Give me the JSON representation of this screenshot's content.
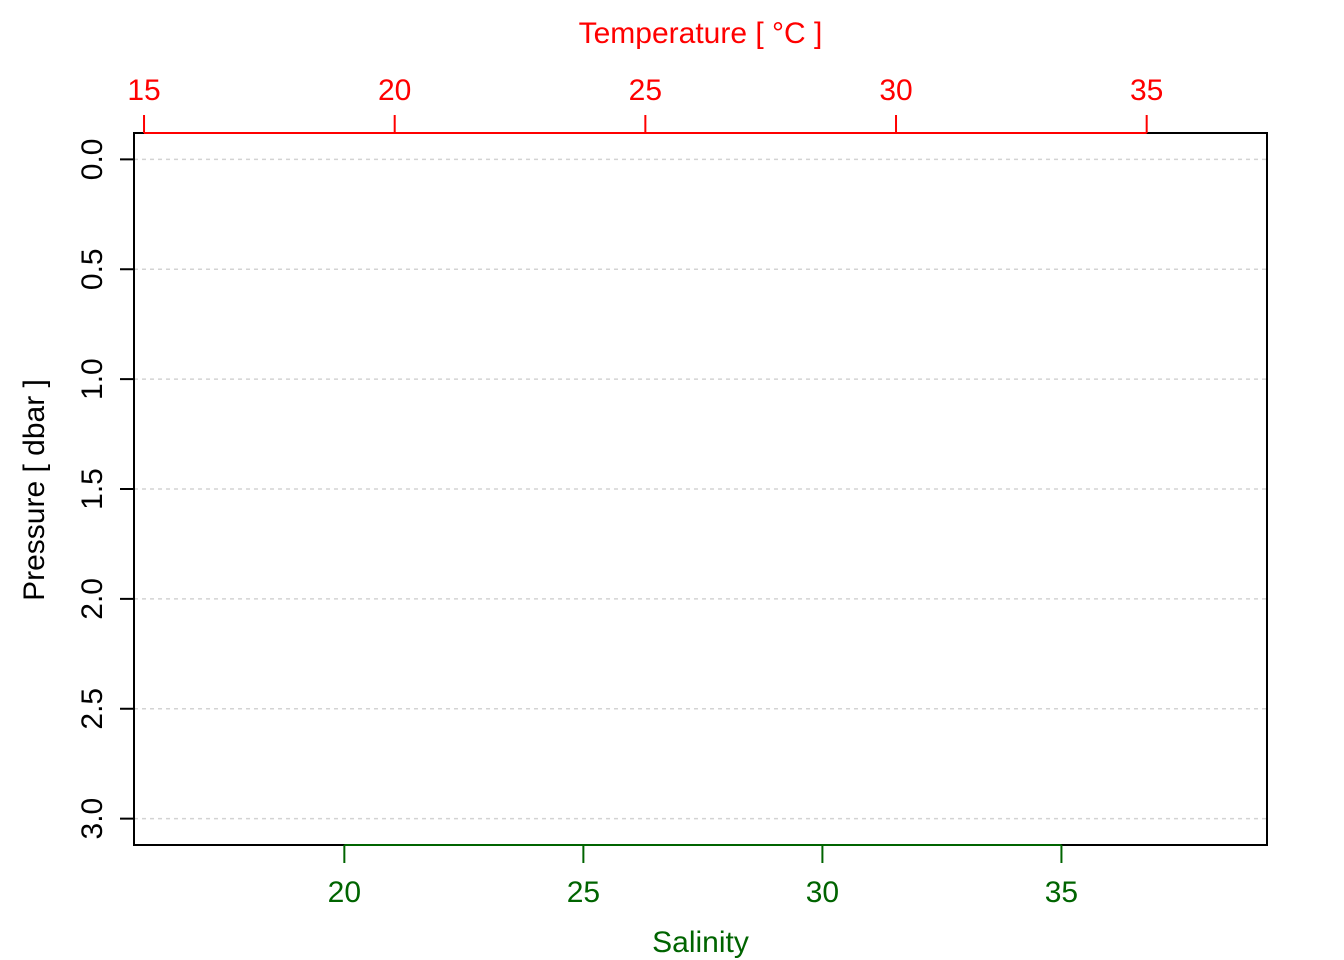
{
  "chart_data": {
    "type": "line",
    "title": "",
    "series": [],
    "y_axis": {
      "label": "Pressure [ dbar ]",
      "ylim": [
        3.12,
        -0.12
      ],
      "reversed": true,
      "ticks": [
        0.0,
        0.5,
        1.0,
        1.5,
        2.0,
        2.5,
        3.0
      ],
      "tick_labels": [
        "0.0",
        "0.5",
        "1.0",
        "1.5",
        "2.0",
        "2.5",
        "3.0"
      ],
      "grid": true,
      "color": "#000000"
    },
    "x_axis_top": {
      "label": "Temperature [ °C ]",
      "xlim": [
        14.8,
        37.4
      ],
      "ticks": [
        15,
        20,
        25,
        30,
        35
      ],
      "tick_labels": [
        "15",
        "20",
        "25",
        "30",
        "35"
      ],
      "color": "#ff0000"
    },
    "x_axis_bottom": {
      "label": "Salinity",
      "xlim": [
        15.6,
        39.3
      ],
      "ticks": [
        20,
        25,
        30,
        35
      ],
      "tick_labels": [
        "20",
        "25",
        "30",
        "35"
      ],
      "color": "#006400"
    },
    "grid_color": "#d3d3d3"
  }
}
